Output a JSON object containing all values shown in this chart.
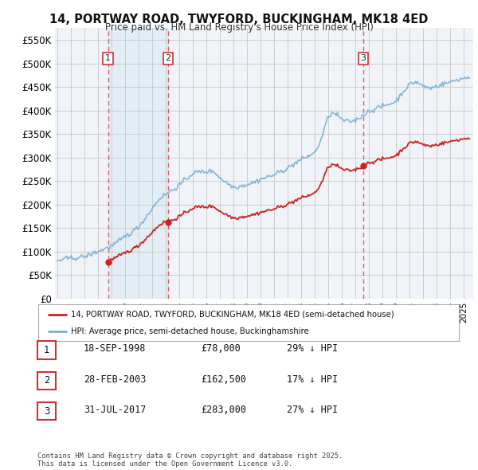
{
  "title": "14, PORTWAY ROAD, TWYFORD, BUCKINGHAM, MK18 4ED",
  "subtitle": "Price paid vs. HM Land Registry's House Price Index (HPI)",
  "legend_label_red": "14, PORTWAY ROAD, TWYFORD, BUCKINGHAM, MK18 4ED (semi-detached house)",
  "legend_label_blue": "HPI: Average price, semi-detached house, Buckinghamshire",
  "table_rows": [
    [
      "1",
      "18-SEP-1998",
      "£78,000",
      "29% ↓ HPI"
    ],
    [
      "2",
      "28-FEB-2003",
      "£162,500",
      "17% ↓ HPI"
    ],
    [
      "3",
      "31-JUL-2017",
      "£283,000",
      "27% ↓ HPI"
    ]
  ],
  "footer": "Contains HM Land Registry data © Crown copyright and database right 2025.\nThis data is licensed under the Open Government Licence v3.0.",
  "ylim": [
    0,
    575000
  ],
  "yticks": [
    0,
    50000,
    100000,
    150000,
    200000,
    250000,
    300000,
    350000,
    400000,
    450000,
    500000,
    550000
  ],
  "ytick_labels": [
    "£0",
    "£50K",
    "£100K",
    "£150K",
    "£200K",
    "£250K",
    "£300K",
    "£350K",
    "£400K",
    "£450K",
    "£500K",
    "£550K"
  ],
  "color_red": "#cc2222",
  "color_blue": "#7ab0d4",
  "color_dashed": "#dd4444",
  "shade_color": "#ddeeff",
  "background_plot": "#f0f4f8",
  "background_fig": "#ffffff",
  "grid_color": "#cccccc",
  "trans_dates_year": [
    1998.72,
    2003.16,
    2017.58
  ],
  "trans_prices": [
    78000,
    162500,
    283000
  ],
  "trans_labels": [
    "1",
    "2",
    "3"
  ],
  "trans_label_dates": [
    "18-SEP-1998",
    "28-FEB-2003",
    "31-JUL-2017"
  ]
}
